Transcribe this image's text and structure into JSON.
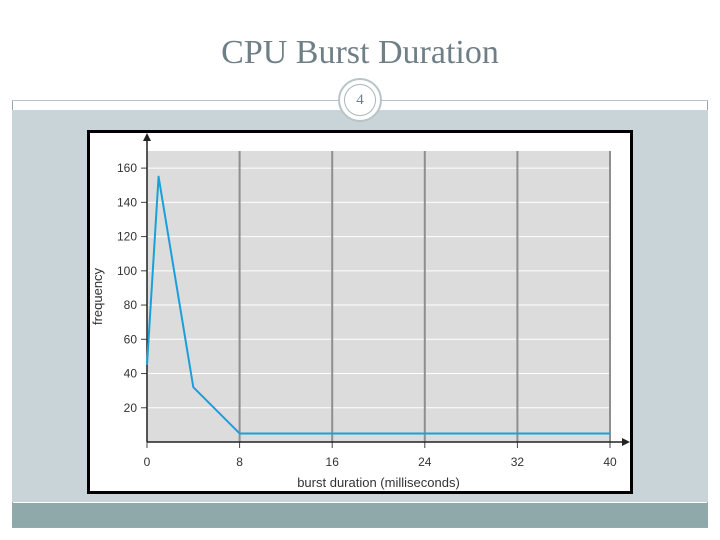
{
  "slide": {
    "title": "CPU Burst Duration",
    "page_number": "4"
  },
  "chart_data": {
    "type": "line",
    "title": "",
    "xlabel": "burst duration (milliseconds)",
    "ylabel": "frequency",
    "xlim": [
      0,
      40
    ],
    "ylim": [
      0,
      170
    ],
    "x_ticks": [
      0,
      8,
      16,
      24,
      32,
      40
    ],
    "y_ticks": [
      20,
      40,
      60,
      80,
      100,
      120,
      140,
      160
    ],
    "x_tick_labels": [
      "0",
      "8",
      "16",
      "24",
      "32",
      "40"
    ],
    "y_tick_labels": [
      "20",
      "40",
      "60",
      "80",
      "100",
      "120",
      "140",
      "160"
    ],
    "grid": true,
    "series": [
      {
        "color": "#1aa0d8",
        "x": [
          0,
          1,
          4,
          8,
          40
        ],
        "y": [
          45,
          155,
          32,
          5,
          5
        ]
      }
    ]
  }
}
